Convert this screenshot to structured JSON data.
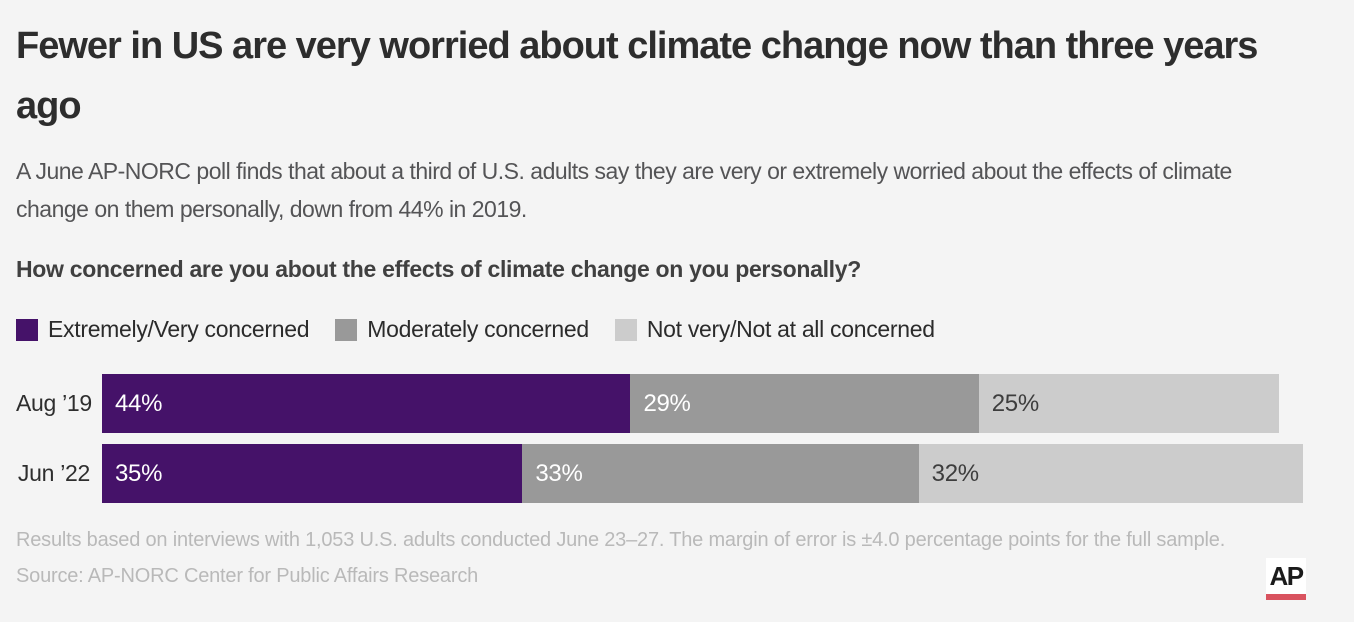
{
  "page": {
    "background": "#f4f4f4",
    "title": "Fewer in US are very worried about climate change now than three years ago",
    "title_lines": [
      "Fewer in US are very worried about climate change now than three years",
      "ago"
    ],
    "subtitle": "A June AP-NORC poll finds that about a third of U.S. adults say they are very or extremely worried about the effects of climate change on them personally, down from 44% in 2019.",
    "subtitle_lines": [
      "A June AP-NORC poll finds that about a third of U.S. adults say they are very or extremely worried about the effects of climate",
      "change on them personally, down from 44% in 2019."
    ],
    "question": "How concerned are you about the effects of climate change on you personally?"
  },
  "legend": [
    {
      "label": "Extremely/Very concerned",
      "color": "#451269"
    },
    {
      "label": "Moderately concerned",
      "color": "#999999"
    },
    {
      "label": "Not very/Not at all concerned",
      "color": "#cccccc"
    }
  ],
  "chart_data": {
    "type": "bar",
    "orientation": "horizontal",
    "stacked": true,
    "title": "How concerned are you about the effects of climate change on you personally?",
    "categories": [
      "Aug ’19",
      "Jun ’22"
    ],
    "series": [
      {
        "name": "Extremely/Very concerned",
        "color": "#451269",
        "values": [
          44,
          35
        ]
      },
      {
        "name": "Moderately concerned",
        "color": "#999999",
        "values": [
          29,
          33
        ]
      },
      {
        "name": "Not very/Not at all concerned",
        "color": "#cccccc",
        "values": [
          25,
          32
        ]
      }
    ],
    "value_suffix": "%",
    "value_label_colors": [
      "#ffffff",
      "#ffffff",
      "#3d3d3d"
    ],
    "xlim": [
      0,
      100
    ],
    "grid": false,
    "legend_position": "top"
  },
  "footer": {
    "note": "Results based on interviews with 1,053 U.S. adults conducted June 23–27. The margin of error is ±4.0 percentage points for the full sample.",
    "source": "Source: AP-NORC Center for Public Affairs Research",
    "logo_text": "AP",
    "logo_bar_color": "#d9535f"
  }
}
